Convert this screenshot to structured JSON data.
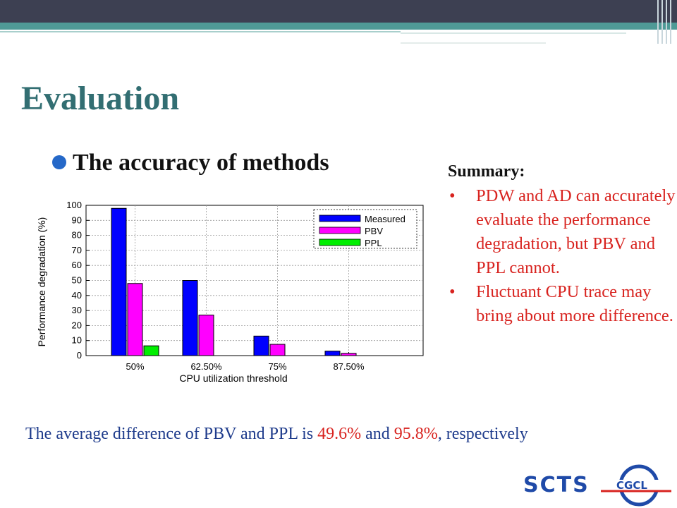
{
  "slide": {
    "title": "Evaluation",
    "bullet": "The accuracy of methods"
  },
  "summary": {
    "title": "Summary:",
    "items": [
      "PDW and AD can accurately evaluate the performance degradation, but PBV and PPL cannot.",
      "Fluctuant CPU trace may bring about more difference."
    ]
  },
  "footer": {
    "text_before": "The average difference of PBV and PPL is ",
    "value1": "49.6%",
    "text_middle": " and ",
    "value2": "95.8%",
    "text_after": ", respectively"
  },
  "logos": {
    "left": "SCTS",
    "right": "CGCL"
  },
  "colors": {
    "title": "#326e72",
    "accent_red": "#d8231f",
    "measured": "#0000ff",
    "pbv": "#ff00ff",
    "ppl": "#00ee00"
  },
  "chart_data": {
    "type": "bar",
    "title": "",
    "xlabel": "CPU utilization threshold",
    "ylabel": "Performance degradation (%)",
    "ylim": [
      0,
      100
    ],
    "yticks": [
      0,
      10,
      20,
      30,
      40,
      50,
      60,
      70,
      80,
      90,
      100
    ],
    "categories": [
      "50%",
      "62.50%",
      "75%",
      "87.50%"
    ],
    "series": [
      {
        "name": "Measured",
        "color": "#0000ff",
        "values": [
          98,
          50,
          13,
          3
        ]
      },
      {
        "name": "PBV",
        "color": "#ff00ff",
        "values": [
          48,
          27,
          7.5,
          1.5
        ]
      },
      {
        "name": "PPL",
        "color": "#00ee00",
        "values": [
          6.5,
          0,
          0,
          0
        ]
      }
    ],
    "grid": true,
    "legend_position": "top-right"
  }
}
